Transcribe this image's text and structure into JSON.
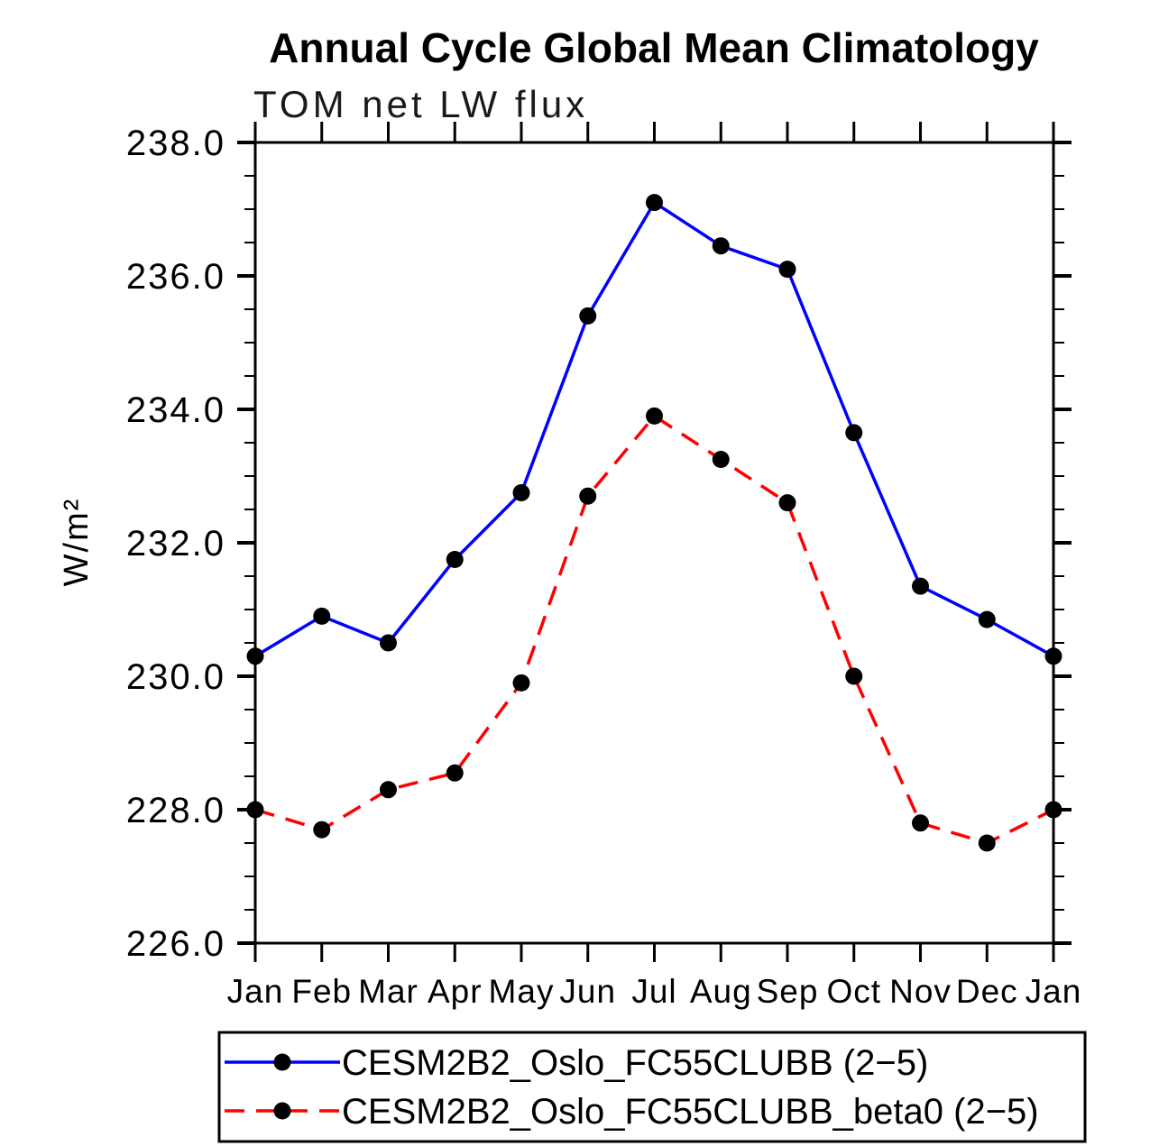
{
  "chart_data": {
    "type": "line",
    "title": "Annual Cycle Global Mean Climatology",
    "subtitle": "TOM net LW flux",
    "ylabel": "W/m²",
    "xlabel": "",
    "categories": [
      "Jan",
      "Feb",
      "Mar",
      "Apr",
      "May",
      "Jun",
      "Jul",
      "Aug",
      "Sep",
      "Oct",
      "Nov",
      "Dec",
      "Jan"
    ],
    "ylim": [
      226.0,
      238.0
    ],
    "ytick_step": 2.0,
    "yminor_step": 0.5,
    "ytick_labels": [
      "226.0",
      "228.0",
      "230.0",
      "232.0",
      "234.0",
      "236.0",
      "238.0"
    ],
    "grid": false,
    "legend_position": "bottom-boxed",
    "marker": "filled-circle",
    "marker_color": "#000000",
    "axis_color": "#000000",
    "background_color": "#ffffff",
    "series": [
      {
        "name": "CESM2B2_Oslo_FC55CLUBB (2−5)",
        "color": "#0000ff",
        "style": "solid",
        "values": [
          230.3,
          230.9,
          230.5,
          231.75,
          232.75,
          235.4,
          237.1,
          236.45,
          236.1,
          233.65,
          231.35,
          230.85,
          230.3
        ]
      },
      {
        "name": "CESM2B2_Oslo_FC55CLUBB_beta0 (2−5)",
        "color": "#ff0000",
        "style": "dashed",
        "values": [
          228.0,
          227.7,
          228.3,
          228.55,
          229.9,
          232.7,
          233.9,
          233.25,
          232.6,
          230.0,
          227.8,
          227.5,
          228.0
        ]
      }
    ]
  }
}
